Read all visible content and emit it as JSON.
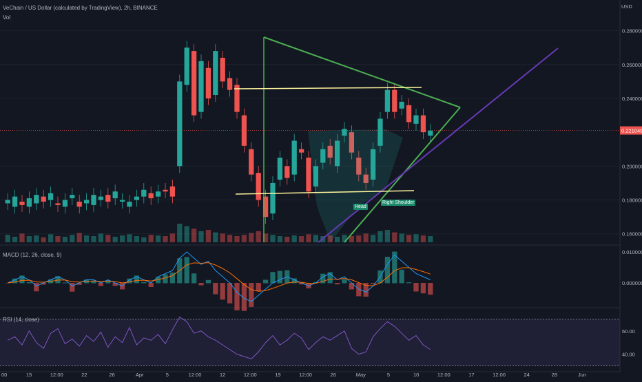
{
  "header": {
    "title": "VeChain / US Dollar (calculated by TradingView), 2h, BINANCE",
    "vol_label": "Vol",
    "currency": "USD"
  },
  "indicators": {
    "macd_label": "MACD (12, 26, close, 9)",
    "rsi_label": "RSI (14, close)"
  },
  "price_axis": {
    "ticks": [
      "0.28000000",
      "0.26000000",
      "0.24000000",
      "0.20000000",
      "0.18000000",
      "0.16000000"
    ],
    "current_price": "0.22104985"
  },
  "macd_axis": {
    "ticks": [
      "0.01000000",
      "0.00000000"
    ]
  },
  "rsi_axis": {
    "ticks": [
      "60.00",
      "40.00"
    ]
  },
  "time_axis": {
    "ticks": [
      "00",
      "15",
      "12:00",
      "22",
      "26",
      "Apr",
      "5",
      "12:00",
      "12",
      "12:00",
      "19",
      "12:00",
      "26",
      "May",
      "5",
      "10",
      "12:00",
      "17",
      "12:00",
      "24",
      "28",
      "Jun"
    ]
  },
  "annotations": {
    "head": "Head",
    "right_shoulder": "Right Shoulder"
  },
  "colors": {
    "background": "#131722",
    "up": "#26a69a",
    "down": "#ef5350",
    "triangle": "#4caf50",
    "trendline": "#673ab7",
    "neckline": "#fff59d",
    "rsi": "#7e57c2",
    "macd_line": "#2196f3",
    "signal_line": "#ff6d00"
  },
  "chart_data": {
    "type": "candlestick",
    "title": "VeChain / US Dollar (calculated by TradingView), 2h, BINANCE",
    "ylim": [
      0.155,
      0.29
    ],
    "y_ticks": [
      0.16,
      0.18,
      0.2,
      0.24,
      0.26,
      0.28
    ],
    "current_price": 0.22104985,
    "price_path": [
      [
        0.178,
        0.18
      ],
      [
        0.176,
        0.182
      ],
      [
        0.179,
        0.177
      ],
      [
        0.176,
        0.181
      ],
      [
        0.178,
        0.183
      ],
      [
        0.182,
        0.179
      ],
      [
        0.18,
        0.184
      ],
      [
        0.178,
        0.177
      ],
      [
        0.176,
        0.18
      ],
      [
        0.181,
        0.183
      ],
      [
        0.179,
        0.176
      ],
      [
        0.178,
        0.18
      ],
      [
        0.177,
        0.183
      ],
      [
        0.18,
        0.182
      ],
      [
        0.183,
        0.179
      ],
      [
        0.181,
        0.185
      ],
      [
        0.179,
        0.18
      ],
      [
        0.176,
        0.179
      ],
      [
        0.18,
        0.182
      ],
      [
        0.182,
        0.186
      ],
      [
        0.184,
        0.181
      ],
      [
        0.182,
        0.185
      ],
      [
        0.186,
        0.185
      ],
      [
        0.188,
        0.182
      ],
      [
        0.2,
        0.25
      ],
      [
        0.248,
        0.27
      ],
      [
        0.268,
        0.23
      ],
      [
        0.232,
        0.262
      ],
      [
        0.258,
        0.24
      ],
      [
        0.242,
        0.268
      ],
      [
        0.264,
        0.25
      ],
      [
        0.252,
        0.245
      ],
      [
        0.248,
        0.232
      ],
      [
        0.23,
        0.212
      ],
      [
        0.21,
        0.195
      ],
      [
        0.196,
        0.18
      ],
      [
        0.182,
        0.17
      ],
      [
        0.172,
        0.19
      ],
      [
        0.192,
        0.205
      ],
      [
        0.2,
        0.193
      ],
      [
        0.195,
        0.215
      ],
      [
        0.21,
        0.208
      ],
      [
        0.205,
        0.185
      ],
      [
        0.188,
        0.2
      ],
      [
        0.202,
        0.21
      ],
      [
        0.212,
        0.205
      ],
      [
        0.2,
        0.215
      ],
      [
        0.218,
        0.222
      ],
      [
        0.22,
        0.208
      ],
      [
        0.205,
        0.195
      ],
      [
        0.195,
        0.19
      ],
      [
        0.192,
        0.21
      ],
      [
        0.212,
        0.228
      ],
      [
        0.232,
        0.245
      ],
      [
        0.245,
        0.232
      ],
      [
        0.234,
        0.238
      ],
      [
        0.236,
        0.226
      ],
      [
        0.225,
        0.23
      ],
      [
        0.23,
        0.22
      ],
      [
        0.218,
        0.221
      ]
    ],
    "volume": [
      12,
      9,
      14,
      10,
      11,
      8,
      13,
      10,
      9,
      12,
      15,
      11,
      10,
      14,
      12,
      9,
      11,
      13,
      10,
      8,
      12,
      11,
      10,
      14,
      30,
      26,
      22,
      18,
      20,
      16,
      14,
      12,
      10,
      12,
      15,
      18,
      14,
      12,
      10,
      9,
      11,
      10,
      13,
      12,
      10,
      11,
      9,
      12,
      10,
      11,
      14,
      12,
      18,
      20,
      16,
      14,
      12,
      13,
      11,
      10
    ],
    "macd": [
      0.0,
      0.001,
      0.002,
      0.001,
      -0.001,
      0.0,
      0.001,
      0.002,
      0.001,
      -0.001,
      0.0,
      0.001,
      0.001,
      0.0,
      0.001,
      0.0,
      -0.001,
      0.001,
      0.002,
      0.001,
      0.0,
      0.002,
      0.003,
      0.004,
      0.008,
      0.01,
      0.008,
      0.006,
      0.007,
      0.004,
      0.002,
      0.0,
      -0.003,
      -0.005,
      -0.006,
      -0.004,
      -0.002,
      0.0,
      0.001,
      0.002,
      0.001,
      0.0,
      -0.001,
      0.0,
      0.002,
      0.003,
      0.001,
      0.002,
      0.0,
      -0.002,
      -0.003,
      -0.001,
      0.002,
      0.006,
      0.009,
      0.007,
      0.005,
      0.003,
      0.002,
      0.001
    ],
    "rsi": [
      52,
      55,
      48,
      60,
      50,
      45,
      58,
      62,
      49,
      53,
      47,
      56,
      51,
      59,
      46,
      55,
      50,
      63,
      48,
      54,
      52,
      57,
      49,
      61,
      72,
      68,
      58,
      60,
      55,
      52,
      48,
      44,
      40,
      38,
      36,
      42,
      50,
      56,
      48,
      52,
      58,
      54,
      44,
      50,
      55,
      52,
      56,
      60,
      45,
      40,
      42,
      55,
      62,
      68,
      64,
      58,
      52,
      56,
      48,
      44
    ]
  }
}
